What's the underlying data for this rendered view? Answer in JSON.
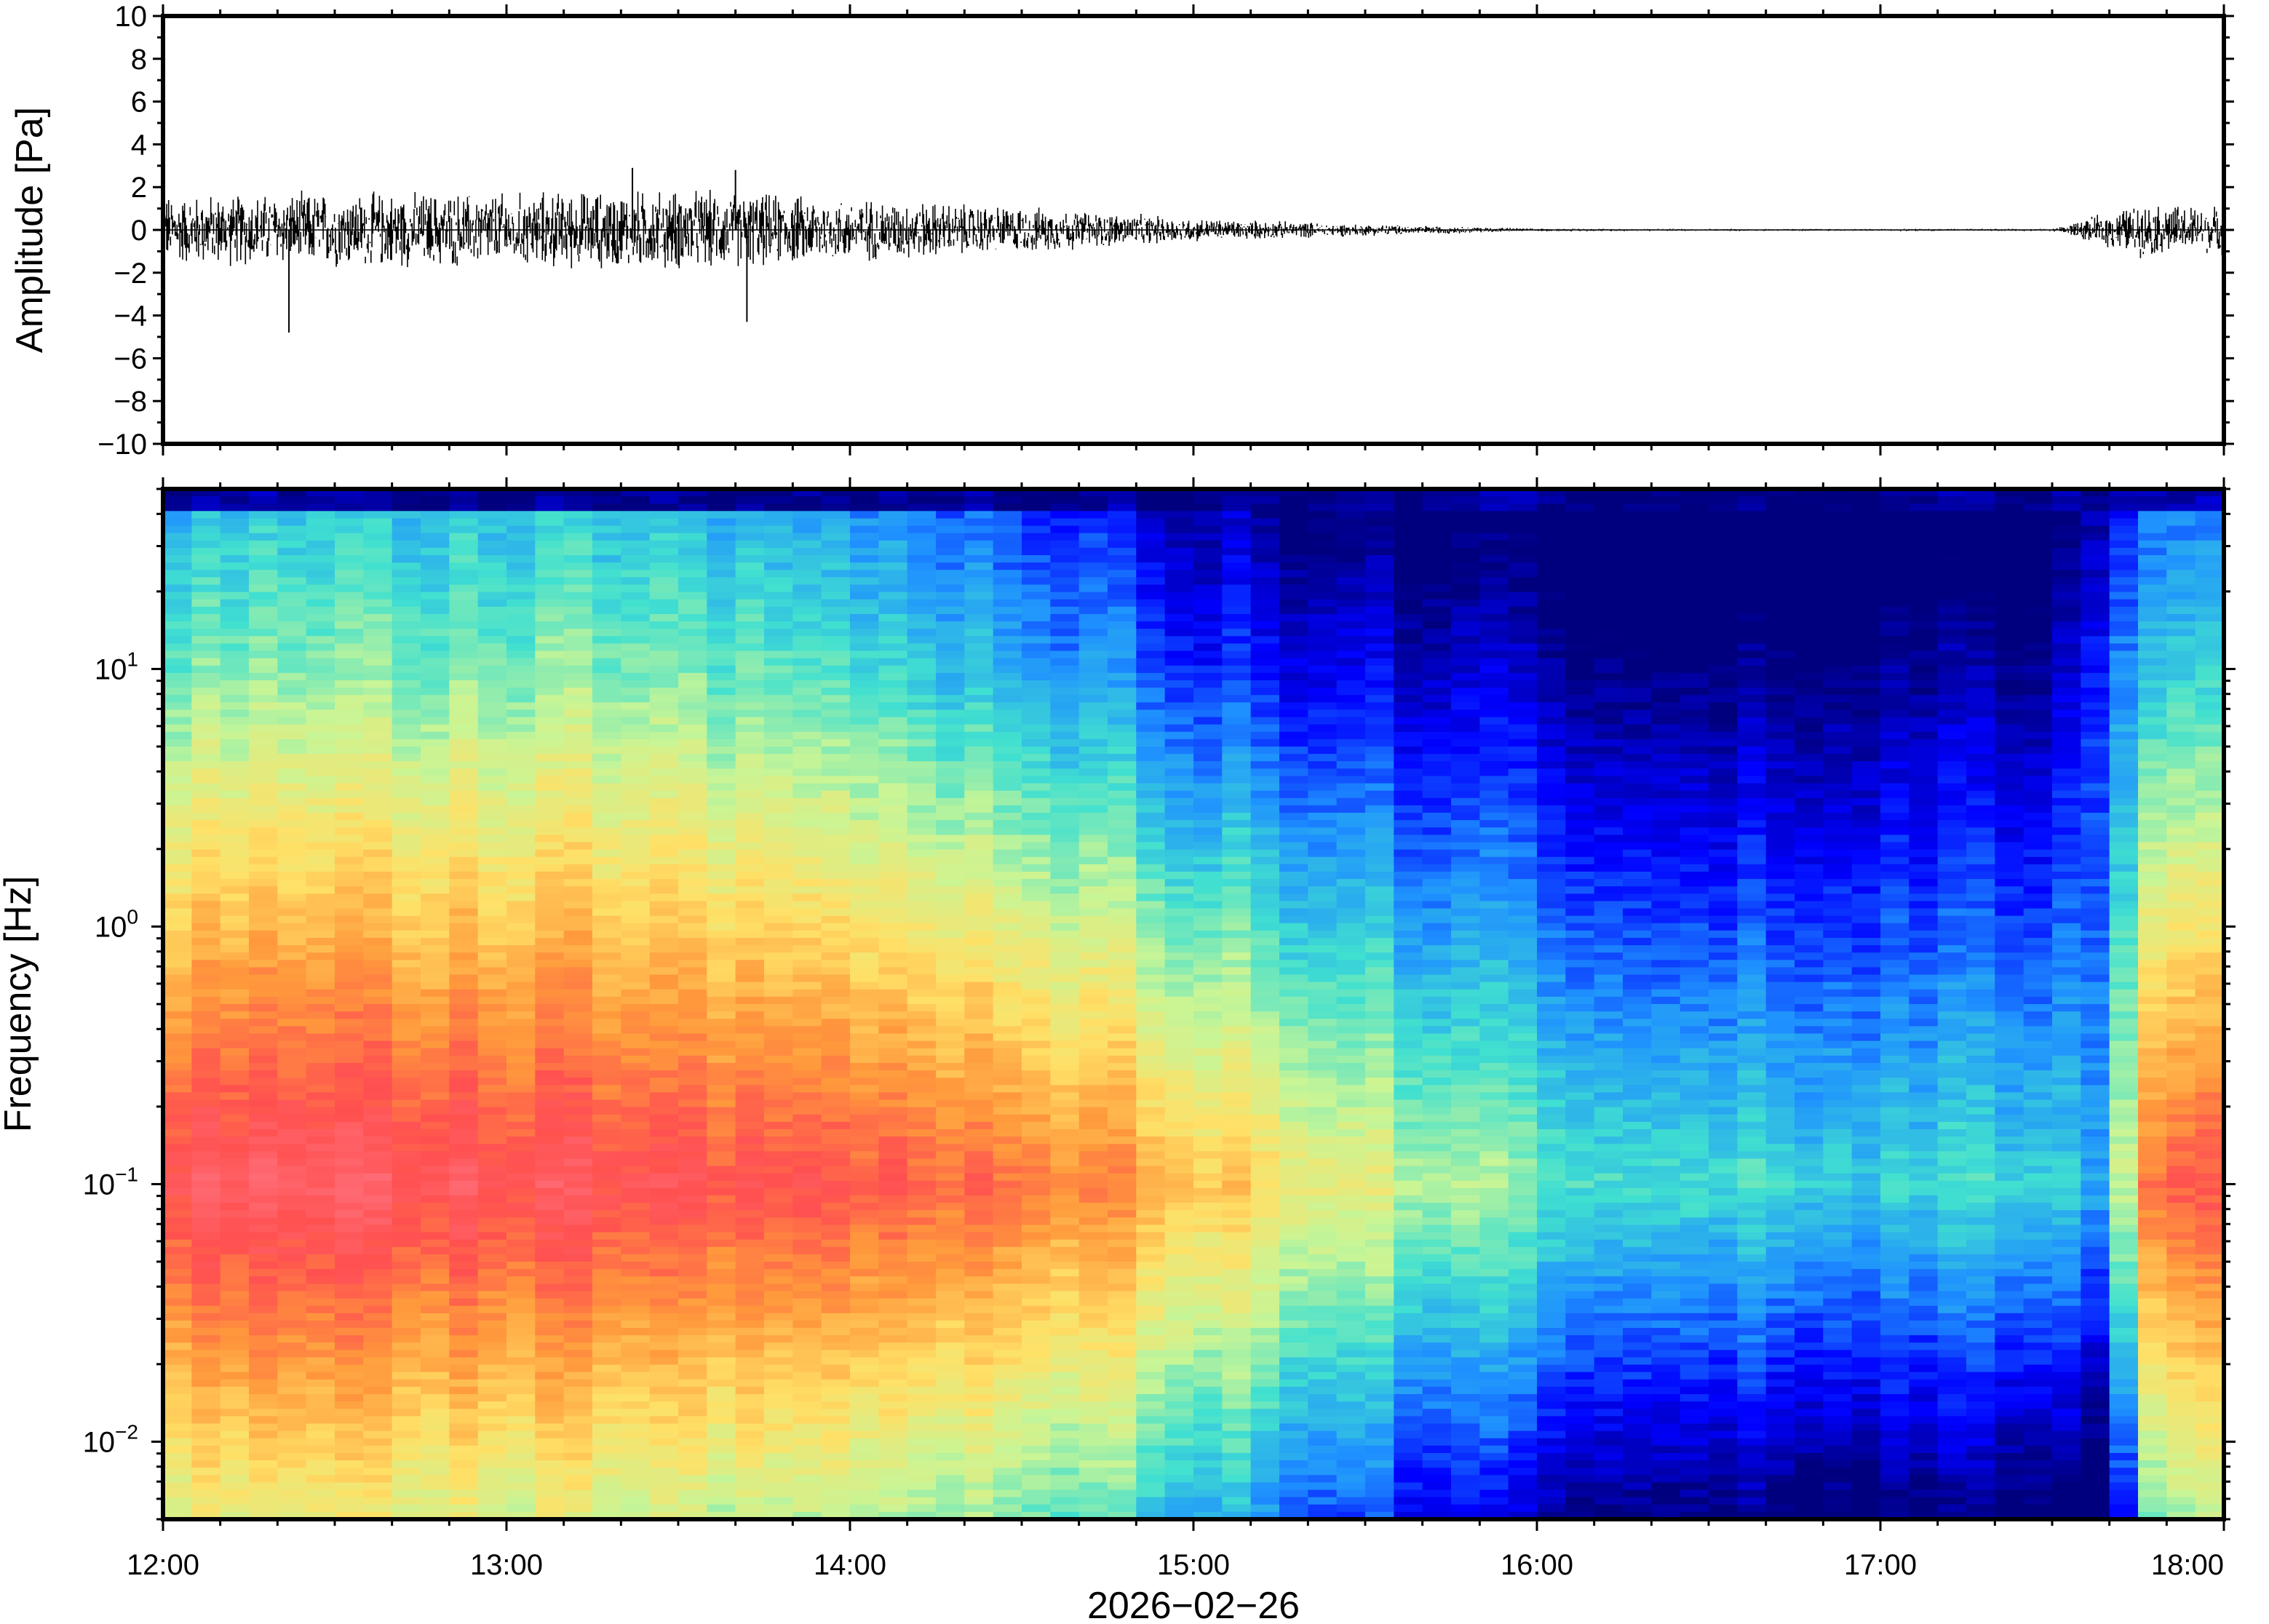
{
  "chart_data": [
    {
      "type": "line",
      "name": "waveform",
      "ylabel": "Amplitude [Pa]",
      "ylim": [
        -10,
        10
      ],
      "yticks": [
        "10",
        "8",
        "6",
        "4",
        "2",
        "0",
        "−2",
        "−4",
        "−6",
        "−8",
        "−10"
      ],
      "ytick_values": [
        10,
        8,
        6,
        4,
        2,
        0,
        -2,
        -4,
        -6,
        -8,
        -10
      ],
      "xlim": [
        "12:00",
        "18:00"
      ],
      "series": [
        {
          "envelope_time_h": [
            12.0,
            12.5,
            13.0,
            13.5,
            14.0,
            14.5,
            15.0,
            15.5,
            16.0,
            16.5,
            17.0,
            17.5,
            17.75,
            18.0
          ],
          "envelope_amplitude_pa": [
            1.2,
            1.3,
            1.3,
            1.4,
            1.1,
            0.8,
            0.4,
            0.2,
            0.05,
            0.04,
            0.04,
            0.04,
            0.9,
            0.8
          ]
        }
      ],
      "spikes": [
        {
          "time": "12:22",
          "value": -4.8
        },
        {
          "time": "13:42",
          "value": -4.3
        },
        {
          "time": "13:40",
          "value": 2.8
        },
        {
          "time": "13:22",
          "value": 2.9
        }
      ]
    },
    {
      "type": "heatmap",
      "name": "spectrogram",
      "ylabel": "Frequency [Hz]",
      "yscale": "log",
      "ylim": [
        0.005,
        50
      ],
      "yticks": [
        {
          "base": "10",
          "exp": "1",
          "value": 10
        },
        {
          "base": "10",
          "exp": "0",
          "value": 1
        },
        {
          "base": "10",
          "exp": "−1",
          "value": 0.1
        },
        {
          "base": "10",
          "exp": "−2",
          "value": 0.01
        }
      ],
      "xlabel": "2026−02−26",
      "xticks": [
        "12:00",
        "13:00",
        "14:00",
        "15:00",
        "16:00",
        "17:00",
        "18:00"
      ],
      "xlim": [
        "12:00",
        "18:00"
      ],
      "colormap": "jet",
      "colormap_stops": [
        "#00007f",
        "#0000ff",
        "#1e90ff",
        "#40e0d0",
        "#c8f596",
        "#ffe066",
        "#ff9a3c",
        "#ff5050",
        "#ff6e78"
      ],
      "power_profile_time_h": [
        12.0,
        12.5,
        13.0,
        13.5,
        14.0,
        14.5,
        15.0,
        15.5,
        16.0,
        16.5,
        17.0,
        17.5,
        17.65,
        17.8,
        18.0
      ],
      "power_intensity_at_0_1Hz": [
        0.92,
        0.95,
        0.93,
        0.9,
        0.87,
        0.82,
        0.7,
        0.55,
        0.42,
        0.4,
        0.36,
        0.35,
        0.3,
        0.8,
        0.85
      ],
      "power_intensity_at_10Hz": [
        0.42,
        0.44,
        0.45,
        0.44,
        0.38,
        0.3,
        0.18,
        0.1,
        0.04,
        0.02,
        0.02,
        0.02,
        0.2,
        0.3,
        0.32
      ]
    }
  ]
}
